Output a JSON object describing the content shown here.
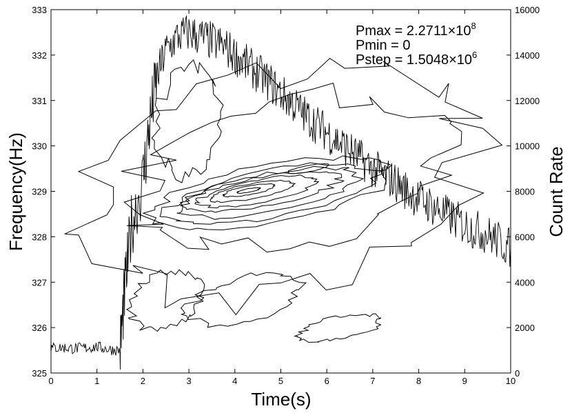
{
  "chart_data": {
    "type": "line",
    "title": "",
    "xlabel": "Time(s)",
    "ylabel": "Frequency(Hz)",
    "y2label": "Count Rate",
    "xlim": [
      0,
      10
    ],
    "ylim": [
      325,
      333
    ],
    "y2lim": [
      0,
      16000
    ],
    "x_ticks": [
      "0",
      "1",
      "2",
      "3",
      "4",
      "5",
      "6",
      "7",
      "8",
      "9",
      "10"
    ],
    "y_ticks": [
      "325",
      "326",
      "327",
      "328",
      "329",
      "330",
      "331",
      "332",
      "333"
    ],
    "y2_ticks": [
      "0",
      "2000",
      "4000",
      "6000",
      "8000",
      "10000",
      "12000",
      "14000",
      "16000"
    ],
    "annotations": {
      "pmax_label": "Pmax = 2.2711×10",
      "pmax_exp": "8",
      "pmin_label": "Pmin = 0",
      "pstep_label": "Pstep = 1.5048×10",
      "pstep_exp": "6"
    },
    "count_rate_series": {
      "name": "",
      "axis": "right",
      "x": [
        0,
        0.25,
        0.5,
        0.75,
        1.0,
        1.25,
        1.5,
        1.6,
        1.75,
        2.0,
        2.15,
        2.3,
        2.5,
        2.75,
        3.0,
        3.25,
        3.5,
        3.75,
        4.0,
        4.25,
        4.5,
        4.75,
        5.0,
        5.25,
        5.5,
        5.75,
        6.0,
        6.25,
        6.5,
        6.75,
        7.0,
        7.25,
        7.5,
        7.75,
        8.0,
        8.25,
        8.5,
        8.75,
        9.0,
        9.25,
        9.5,
        9.75,
        10.0
      ],
      "values": [
        1100,
        1120,
        1080,
        1110,
        1150,
        1050,
        1000,
        3500,
        6500,
        8500,
        11000,
        13000,
        14200,
        14800,
        15000,
        14800,
        14600,
        14400,
        14000,
        13600,
        13200,
        12800,
        12300,
        11900,
        11400,
        11000,
        10600,
        10200,
        9800,
        9400,
        9000,
        8700,
        8400,
        8000,
        7700,
        7400,
        7100,
        6800,
        6500,
        6300,
        6100,
        5800,
        5500
      ]
    },
    "contour_levels": [
      {
        "level": 1,
        "center_x": 4.8,
        "center_y": 328.95,
        "rx": 2.6,
        "ry": 0.65
      },
      {
        "level": 2,
        "center_x": 4.8,
        "center_y": 328.95,
        "rx": 2.25,
        "ry": 0.52
      },
      {
        "level": 3,
        "center_x": 4.7,
        "center_y": 328.97,
        "rx": 1.95,
        "ry": 0.42
      },
      {
        "level": 4,
        "center_x": 4.6,
        "center_y": 328.99,
        "rx": 1.65,
        "ry": 0.33
      },
      {
        "level": 5,
        "center_x": 4.5,
        "center_y": 329.0,
        "rx": 1.3,
        "ry": 0.25
      },
      {
        "level": 6,
        "center_x": 4.35,
        "center_y": 329.0,
        "rx": 0.9,
        "ry": 0.17
      },
      {
        "level": 7,
        "center_x": 4.3,
        "center_y": 329.02,
        "rx": 0.55,
        "ry": 0.1
      },
      {
        "level": 8,
        "center_x": 4.3,
        "center_y": 329.02,
        "rx": 0.25,
        "ry": 0.04
      }
    ],
    "secondary_peak": {
      "center_x": 5.6,
      "center_y": 329.5,
      "rx": 0.45,
      "ry": 0.07
    },
    "grid": false,
    "legend": "none"
  }
}
